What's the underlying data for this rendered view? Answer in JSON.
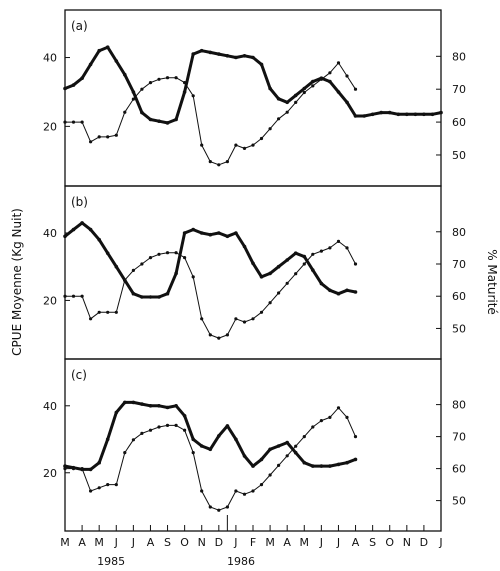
{
  "chart_data": {
    "type": "line",
    "months": [
      "M",
      "A",
      "M",
      "J",
      "J",
      "A",
      "S",
      "O",
      "N",
      "D",
      "J",
      "F",
      "M",
      "A",
      "M",
      "J",
      "J",
      "A",
      "S",
      "O",
      "N",
      "D",
      "J"
    ],
    "years": [
      "1985",
      "1986"
    ],
    "ylabel_left": "CPUE   Moyenne (Kg Nuit)",
    "ylabel_right": "% Maturité",
    "left_axis": {
      "ticks": [
        20,
        40
      ]
    },
    "right_axis": {
      "ticks": [
        50,
        60,
        70,
        80
      ]
    },
    "panels": [
      {
        "label": "(a)",
        "series": [
          {
            "style": "thick",
            "x": [
              0,
              0.5,
              1,
              1.5,
              2,
              2.5,
              3,
              3.5,
              4,
              4.5,
              5,
              5.5,
              6,
              6.5,
              7,
              7.5,
              8,
              8.5,
              9,
              9.5,
              10,
              10.5,
              11,
              11.5,
              12,
              12.5,
              13,
              13.5,
              14,
              14.5,
              15,
              15.5,
              16,
              16.5,
              17,
              17.5,
              18,
              18.5,
              19,
              19.5,
              20,
              20.5,
              21,
              21.5,
              22
            ],
            "y": [
              31,
              32,
              34,
              38,
              42,
              43,
              39,
              35,
              30,
              24,
              22,
              21.5,
              21,
              22,
              30,
              41,
              42,
              41.5,
              41,
              40.5,
              40,
              40.5,
              40,
              38,
              31,
              28,
              27,
              29,
              31,
              33,
              34,
              33,
              30,
              27,
              23,
              23,
              23.5,
              24,
              24,
              23.5,
              23.5,
              23.5,
              23.5,
              23.5,
              24
            ]
          },
          {
            "style": "thin",
            "x": [
              0,
              0.5,
              1,
              1.5,
              2,
              2.5,
              3,
              3.5,
              4,
              4.5,
              5,
              5.5,
              6,
              6.5,
              7,
              7.5,
              8,
              8.5,
              9,
              9.5,
              10,
              10.5,
              11,
              11.5,
              12,
              12.5,
              13,
              13.5,
              14,
              14.5,
              15,
              15.5,
              16,
              16.5,
              17
            ],
            "y": [
              60,
              60,
              60,
              54,
              55.5,
              55.5,
              56,
              63,
              67,
              70,
              72,
              73,
              73.5,
              73.5,
              72,
              68,
              53,
              48,
              47,
              48,
              53,
              52,
              53,
              55,
              58,
              61,
              63,
              66,
              69,
              71,
              73,
              75,
              78,
              74,
              70
            ]
          }
        ]
      },
      {
        "label": "(b)",
        "series": [
          {
            "style": "thick",
            "x": [
              0,
              0.5,
              1,
              1.5,
              2,
              2.5,
              3,
              3.5,
              4,
              4.5,
              5,
              5.5,
              6,
              6.5,
              7,
              7.5,
              8,
              8.5,
              9,
              9.5,
              10,
              10.5,
              11,
              11.5,
              12,
              12.5,
              13,
              13.5,
              14,
              14.5,
              15,
              15.5,
              16,
              16.5,
              17
            ],
            "y": [
              39,
              41,
              43,
              41,
              38,
              34,
              30,
              26,
              22,
              21,
              21,
              21,
              22,
              28,
              40,
              41,
              40,
              39.5,
              40,
              39,
              40,
              36,
              31,
              27,
              28,
              30,
              32,
              34,
              33,
              29,
              25,
              23,
              22,
              23,
              22.5
            ]
          },
          {
            "style": "thin",
            "x": [
              0,
              0.5,
              1,
              1.5,
              2,
              2.5,
              3,
              3.5,
              4,
              4.5,
              5,
              5.5,
              6,
              6.5,
              7,
              7.5,
              8,
              8.5,
              9,
              9.5,
              10,
              10.5,
              11,
              11.5,
              12,
              12.5,
              13,
              13.5,
              14,
              14.5,
              15,
              15.5,
              16,
              16.5,
              17
            ],
            "y": [
              60,
              60,
              60,
              53,
              55,
              55,
              55,
              65,
              68,
              70,
              72,
              73,
              73.5,
              73.5,
              72,
              66,
              53,
              48,
              47,
              48,
              53,
              52,
              53,
              55,
              58,
              61,
              64,
              67,
              70,
              73,
              74,
              75,
              77,
              75,
              70
            ]
          }
        ]
      },
      {
        "label": "(c)",
        "series": [
          {
            "style": "thick",
            "x": [
              0,
              0.5,
              1,
              1.5,
              2,
              2.5,
              3,
              3.5,
              4,
              4.5,
              5,
              5.5,
              6,
              6.5,
              7,
              7.5,
              8,
              8.5,
              9,
              9.5,
              10,
              10.5,
              11,
              11.5,
              12,
              12.5,
              13,
              13.5,
              14,
              14.5,
              15,
              15.5,
              16,
              16.5,
              17
            ],
            "y": [
              22,
              21.5,
              21,
              21,
              23,
              30,
              38,
              41,
              41,
              40.5,
              40,
              40,
              39.5,
              40,
              37,
              30,
              28,
              27,
              31,
              34,
              30,
              25,
              22,
              24,
              27,
              28,
              29,
              26,
              23,
              22,
              22,
              22,
              22.5,
              23,
              24
            ]
          },
          {
            "style": "thin",
            "x": [
              0,
              0.5,
              1,
              1.5,
              2,
              2.5,
              3,
              3.5,
              4,
              4.5,
              5,
              5.5,
              6,
              6.5,
              7,
              7.5,
              8,
              8.5,
              9,
              9.5,
              10,
              10.5,
              11,
              11.5,
              12,
              12.5,
              13,
              13.5,
              14,
              14.5,
              15,
              15.5,
              16,
              16.5,
              17
            ],
            "y": [
              60,
              60,
              60,
              53,
              54,
              55,
              55,
              65,
              69,
              71,
              72,
              73,
              73.5,
              73.5,
              72,
              65,
              53,
              48,
              47,
              48,
              53,
              52,
              53,
              55,
              58,
              61,
              64,
              67,
              70,
              73,
              75,
              76,
              79,
              76,
              70
            ]
          }
        ]
      }
    ]
  }
}
